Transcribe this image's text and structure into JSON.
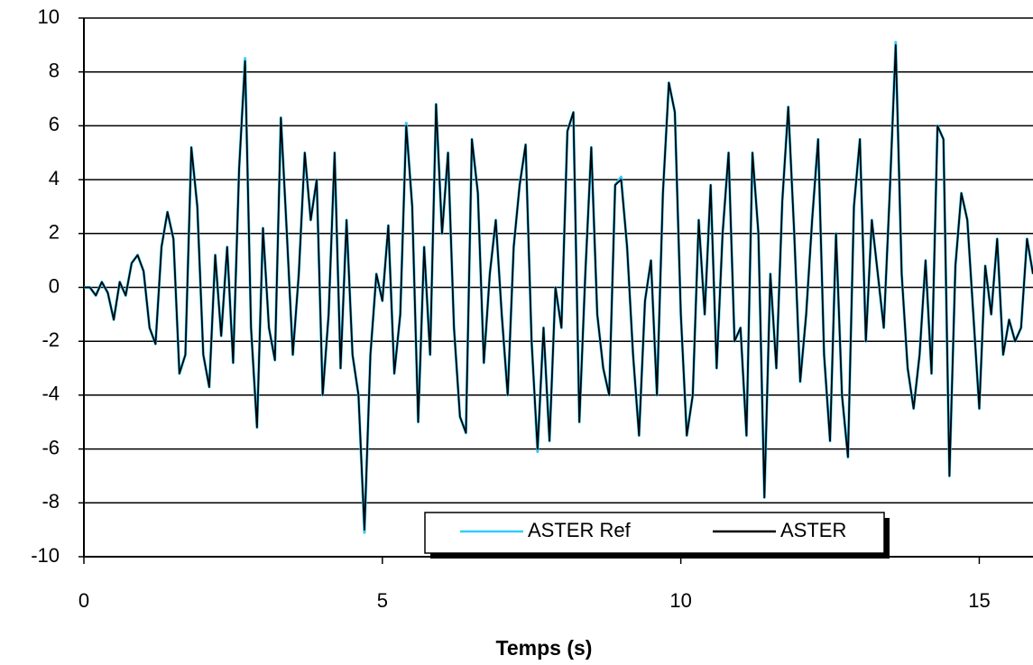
{
  "chart_data": {
    "type": "line",
    "x_label": "Temps (s)",
    "x": [
      0,
      0.1,
      0.2,
      0.3,
      0.4,
      0.5,
      0.6,
      0.7,
      0.8,
      0.9,
      1,
      1.1,
      1.2,
      1.3,
      1.4,
      1.5,
      1.6,
      1.7,
      1.8,
      1.9,
      2,
      2.1,
      2.2,
      2.3,
      2.4,
      2.5,
      2.6,
      2.7,
      2.8,
      2.9,
      3,
      3.1,
      3.2,
      3.3,
      3.4,
      3.5,
      3.6,
      3.7,
      3.8,
      3.9,
      4,
      4.1,
      4.2,
      4.3,
      4.4,
      4.5,
      4.6,
      4.7,
      4.8,
      4.9,
      5,
      5.1,
      5.2,
      5.3,
      5.4,
      5.5,
      5.6,
      5.7,
      5.8,
      5.9,
      6,
      6.1,
      6.2,
      6.3,
      6.4,
      6.5,
      6.6,
      6.7,
      6.8,
      6.9,
      7,
      7.1,
      7.2,
      7.3,
      7.4,
      7.5,
      7.6,
      7.7,
      7.8,
      7.9,
      8,
      8.1,
      8.2,
      8.3,
      8.4,
      8.5,
      8.6,
      8.7,
      8.8,
      8.9,
      9,
      9.1,
      9.2,
      9.3,
      9.4,
      9.5,
      9.6,
      9.7,
      9.8,
      9.9,
      10,
      10.1,
      10.2,
      10.3,
      10.4,
      10.5,
      10.6,
      10.7,
      10.8,
      10.9,
      11,
      11.1,
      11.2,
      11.3,
      11.4,
      11.5,
      11.6,
      11.7,
      11.8,
      11.9,
      12,
      12.1,
      12.2,
      12.3,
      12.4,
      12.5,
      12.6,
      12.7,
      12.8,
      12.9,
      13,
      13.1,
      13.2,
      13.3,
      13.4,
      13.5,
      13.6,
      13.7,
      13.8,
      13.9,
      14,
      14.1,
      14.2,
      14.3,
      14.4,
      14.5,
      14.6,
      14.7,
      14.8,
      14.9,
      15,
      15.1,
      15.2,
      15.3,
      15.4,
      15.5,
      15.6,
      15.7,
      15.8,
      15.9
    ],
    "series": [
      {
        "name": "ASTER Ref",
        "color": "#33ccff",
        "values": [
          0,
          0,
          -0.3,
          0.2,
          -0.2,
          -1.2,
          0.2,
          -0.3,
          0.9,
          1.2,
          0.6,
          -1.5,
          -2.1,
          1.5,
          2.8,
          1.8,
          -3.2,
          -2.5,
          5.2,
          3,
          -2.5,
          -3.7,
          1.2,
          -1.8,
          1.5,
          -2.8,
          4.4,
          8.5,
          -1.5,
          -5.2,
          2.2,
          -1.5,
          -2.7,
          6.3,
          2,
          -2.5,
          0.5,
          5,
          2.5,
          4,
          -4,
          -1,
          5,
          -3,
          2.5,
          -2.5,
          -4,
          -9.1,
          -2.5,
          0.5,
          -0.5,
          2.3,
          -3.2,
          -1,
          6.1,
          3,
          -5,
          1.5,
          -2.5,
          6.8,
          2,
          5,
          -1.5,
          -4.8,
          -5.4,
          5.5,
          3.5,
          -2.8,
          0.5,
          2.5,
          -1,
          -4,
          1.5,
          3.8,
          5.3,
          -2,
          -6.1,
          -1.5,
          -5.7,
          0,
          -1.5,
          5.8,
          6.5,
          -5,
          0.5,
          5.2,
          -1,
          -3,
          -4,
          3.8,
          4.1,
          1.5,
          -2.5,
          -5.5,
          -0.5,
          1,
          -4,
          3.5,
          7.6,
          6.5,
          -1,
          -5.5,
          -4,
          2.5,
          -1,
          3.8,
          -3,
          2,
          5,
          -2,
          -1.5,
          -5.5,
          5,
          2,
          -7.8,
          0.5,
          -3,
          3.2,
          6.7,
          2,
          -3.5,
          -1,
          2.5,
          5.5,
          -2.5,
          -5.7,
          2,
          -4,
          -6.3,
          3,
          5.5,
          -2,
          2.5,
          0.5,
          -1.5,
          3.5,
          9.1,
          0.5,
          -3,
          -4.5,
          -2.5,
          1,
          -3.2,
          6,
          5.5,
          -7,
          0.8,
          3.5,
          2.5,
          -1,
          -4.5,
          0.8,
          -1,
          1.8,
          -2.5,
          -1.2,
          -2,
          -1.5,
          1.8,
          0.5
        ]
      },
      {
        "name": "ASTER",
        "color": "#000000",
        "values": [
          0,
          0,
          -0.3,
          0.2,
          -0.2,
          -1.2,
          0.2,
          -0.3,
          0.9,
          1.2,
          0.6,
          -1.5,
          -2.1,
          1.5,
          2.8,
          1.8,
          -3.2,
          -2.5,
          5.2,
          3,
          -2.5,
          -3.7,
          1.2,
          -1.8,
          1.5,
          -2.8,
          4.4,
          8.4,
          -1.5,
          -5.2,
          2.2,
          -1.5,
          -2.7,
          6.3,
          2,
          -2.5,
          0.5,
          5,
          2.5,
          4,
          -4,
          -1,
          5,
          -3,
          2.5,
          -2.5,
          -4,
          -9,
          -2.5,
          0.5,
          -0.5,
          2.3,
          -3.2,
          -1,
          6,
          3,
          -5,
          1.5,
          -2.5,
          6.8,
          2,
          5,
          -1.5,
          -4.8,
          -5.4,
          5.5,
          3.5,
          -2.8,
          0.5,
          2.5,
          -1,
          -4,
          1.5,
          3.8,
          5.3,
          -2,
          -6,
          -1.5,
          -5.7,
          0,
          -1.5,
          5.8,
          6.5,
          -5,
          0.5,
          5.2,
          -1,
          -3,
          -4,
          3.8,
          4,
          1.5,
          -2.5,
          -5.5,
          -0.5,
          1,
          -4,
          3.5,
          7.6,
          6.5,
          -1,
          -5.5,
          -4,
          2.5,
          -1,
          3.8,
          -3,
          2,
          5,
          -2,
          -1.5,
          -5.5,
          5,
          2,
          -7.8,
          0.5,
          -3,
          3.2,
          6.7,
          2,
          -3.5,
          -1,
          2.5,
          5.5,
          -2.5,
          -5.7,
          2,
          -4,
          -6.3,
          3,
          5.5,
          -2,
          2.5,
          0.5,
          -1.5,
          3.5,
          9,
          0.5,
          -3,
          -4.5,
          -2.5,
          1,
          -3.2,
          6,
          5.5,
          -7,
          0.8,
          3.5,
          2.5,
          -1,
          -4.5,
          0.8,
          -1,
          1.8,
          -2.5,
          -1.2,
          -2,
          -1.5,
          1.8,
          0.5
        ]
      }
    ],
    "xlim": [
      0,
      15.9
    ],
    "xticks": [
      0,
      5,
      10,
      15
    ],
    "ylim": [
      -10,
      10
    ],
    "yticks": [
      -10,
      -8,
      -6,
      -4,
      -2,
      0,
      2,
      4,
      6,
      8,
      10
    ],
    "grid": true,
    "legend": "bottom"
  }
}
